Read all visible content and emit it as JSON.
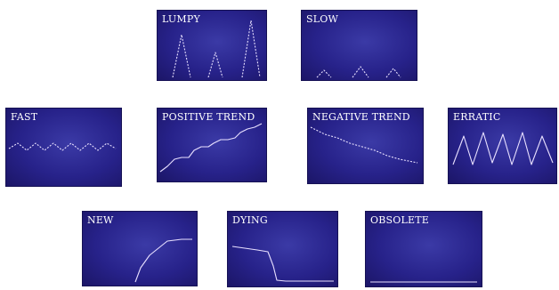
{
  "panels": {
    "lumpy": {
      "label": "LUMPY"
    },
    "slow": {
      "label": "SLOW"
    },
    "fast": {
      "label": "FAST"
    },
    "positive_trend": {
      "label": "POSITIVE TREND"
    },
    "negative_trend": {
      "label": "NEGATIVE TREND"
    },
    "erratic": {
      "label": "ERRATIC"
    },
    "new": {
      "label": "NEW"
    },
    "dying": {
      "label": "DYING"
    },
    "obsolete": {
      "label": "OBSOLETE"
    }
  },
  "colors": {
    "panel_bg": "#27228a",
    "panel_edge": "#1b1565",
    "trace": "#e8e0ff",
    "label": "#ffffff"
  }
}
